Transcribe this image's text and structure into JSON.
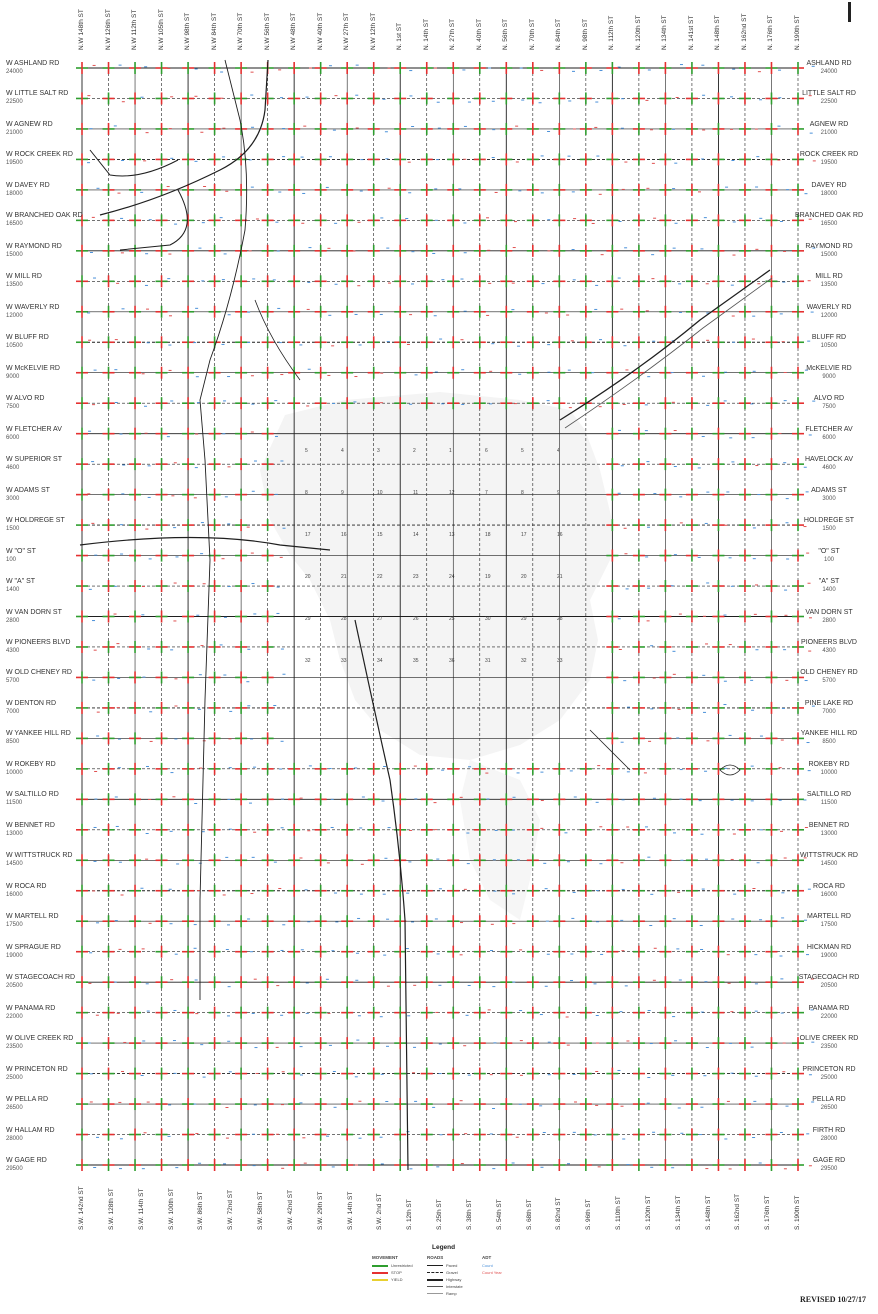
{
  "map": {
    "rows_left": [
      {
        "name": "W ASHLAND RD",
        "addr": "24000"
      },
      {
        "name": "W LITTLE SALT RD",
        "addr": "22500"
      },
      {
        "name": "W AGNEW RD",
        "addr": "21000"
      },
      {
        "name": "W ROCK CREEK RD",
        "addr": "19500"
      },
      {
        "name": "W DAVEY RD",
        "addr": "18000"
      },
      {
        "name": "W BRANCHED OAK RD",
        "addr": "16500"
      },
      {
        "name": "W RAYMOND RD",
        "addr": "15000"
      },
      {
        "name": "W MILL RD",
        "addr": "13500"
      },
      {
        "name": "W WAVERLY RD",
        "addr": "12000"
      },
      {
        "name": "W BLUFF RD",
        "addr": "10500"
      },
      {
        "name": "W McKELVIE RD",
        "addr": "9000"
      },
      {
        "name": "W ALVO RD",
        "addr": "7500"
      },
      {
        "name": "W FLETCHER AV",
        "addr": "6000"
      },
      {
        "name": "W SUPERIOR ST",
        "addr": "4600"
      },
      {
        "name": "W ADAMS ST",
        "addr": "3000"
      },
      {
        "name": "W HOLDREGE ST",
        "addr": "1500"
      },
      {
        "name": "W \"O\" ST",
        "addr": "100"
      },
      {
        "name": "W \"A\" ST",
        "addr": "1400"
      },
      {
        "name": "W VAN DORN ST",
        "addr": "2800"
      },
      {
        "name": "W PIONEERS BLVD",
        "addr": "4300"
      },
      {
        "name": "W OLD CHENEY RD",
        "addr": "5700"
      },
      {
        "name": "W DENTON RD",
        "addr": "7000"
      },
      {
        "name": "W YANKEE HILL RD",
        "addr": "8500"
      },
      {
        "name": "W ROKEBY RD",
        "addr": "10000"
      },
      {
        "name": "W SALTILLO RD",
        "addr": "11500"
      },
      {
        "name": "W BENNET RD",
        "addr": "13000"
      },
      {
        "name": "W WITTSTRUCK RD",
        "addr": "14500"
      },
      {
        "name": "W ROCA RD",
        "addr": "16000"
      },
      {
        "name": "W MARTELL RD",
        "addr": "17500"
      },
      {
        "name": "W SPRAGUE RD",
        "addr": "19000"
      },
      {
        "name": "W STAGECOACH RD",
        "addr": "20500"
      },
      {
        "name": "W PANAMA RD",
        "addr": "22000"
      },
      {
        "name": "W OLIVE CREEK RD",
        "addr": "23500"
      },
      {
        "name": "W PRINCETON RD",
        "addr": "25000"
      },
      {
        "name": "W PELLA RD",
        "addr": "26500"
      },
      {
        "name": "W HALLAM RD",
        "addr": "28000"
      },
      {
        "name": "W GAGE RD",
        "addr": "29500"
      }
    ],
    "rows_right": [
      {
        "name": "ASHLAND RD",
        "addr": "24000"
      },
      {
        "name": "LITTLE SALT RD",
        "addr": "22500"
      },
      {
        "name": "AGNEW RD",
        "addr": "21000"
      },
      {
        "name": "ROCK CREEK RD",
        "addr": "19500"
      },
      {
        "name": "DAVEY RD",
        "addr": "18000"
      },
      {
        "name": "BRANCHED OAK RD",
        "addr": "16500"
      },
      {
        "name": "RAYMOND RD",
        "addr": "15000"
      },
      {
        "name": "MILL RD",
        "addr": "13500"
      },
      {
        "name": "WAVERLY RD",
        "addr": "12000"
      },
      {
        "name": "BLUFF RD",
        "addr": "10500"
      },
      {
        "name": "McKELVIE RD",
        "addr": "9000"
      },
      {
        "name": "ALVO RD",
        "addr": "7500"
      },
      {
        "name": "FLETCHER AV",
        "addr": "6000"
      },
      {
        "name": "HAVELOCK AV",
        "addr": "4600"
      },
      {
        "name": "ADAMS ST",
        "addr": "3000"
      },
      {
        "name": "HOLDREGE ST",
        "addr": "1500"
      },
      {
        "name": "\"O\" ST",
        "addr": "100"
      },
      {
        "name": "\"A\" ST",
        "addr": "1400"
      },
      {
        "name": "VAN DORN ST",
        "addr": "2800"
      },
      {
        "name": "PIONEERS BLVD",
        "addr": "4300"
      },
      {
        "name": "OLD CHENEY RD",
        "addr": "5700"
      },
      {
        "name": "PINE LAKE RD",
        "addr": "7000"
      },
      {
        "name": "YANKEE HILL RD",
        "addr": "8500"
      },
      {
        "name": "ROKEBY RD",
        "addr": "10000"
      },
      {
        "name": "SALTILLO RD",
        "addr": "11500"
      },
      {
        "name": "BENNET RD",
        "addr": "13000"
      },
      {
        "name": "WITTSTRUCK RD",
        "addr": "14500"
      },
      {
        "name": "ROCA RD",
        "addr": "16000"
      },
      {
        "name": "MARTELL RD",
        "addr": "17500"
      },
      {
        "name": "HICKMAN RD",
        "addr": "19000"
      },
      {
        "name": "STAGECOACH RD",
        "addr": "20500"
      },
      {
        "name": "PANAMA RD",
        "addr": "22000"
      },
      {
        "name": "OLIVE CREEK RD",
        "addr": "23500"
      },
      {
        "name": "PRINCETON RD",
        "addr": "25000"
      },
      {
        "name": "PELLA RD",
        "addr": "26500"
      },
      {
        "name": "FIRTH RD",
        "addr": "28000"
      },
      {
        "name": "GAGE RD",
        "addr": "29500"
      }
    ],
    "cols_top": [
      "N.W 148th ST",
      "N.W 126th ST",
      "N.W 112th ST",
      "N.W 105th ST",
      "N.W 98th ST",
      "N.W 84th ST",
      "N.W 70th ST",
      "N.W 56th ST",
      "N.W 48th ST",
      "N.W 40th ST",
      "N.W 27th ST",
      "N.W 12th ST",
      "N. 1st ST",
      "N. 14th ST",
      "N. 27th ST",
      "N. 40th ST",
      "N. 56th ST",
      "N. 70th ST",
      "N. 84th ST",
      "N. 98th ST",
      "N. 112th ST",
      "N. 120th ST",
      "N. 134th ST",
      "N. 141st ST",
      "N. 148th ST",
      "N. 162nd ST",
      "N. 176th ST",
      "N. 190th ST"
    ],
    "cols_bottom": [
      "S.W. 142nd ST",
      "S.W. 128th ST",
      "S.W. 114th ST",
      "S.W. 100th ST",
      "S.W. 86th ST",
      "S.W. 72nd ST",
      "S.W. 58th ST",
      "S.W. 42nd ST",
      "S.W. 29th ST",
      "S.W. 14th ST",
      "S.W. 2nd ST",
      "S. 12th ST",
      "S. 25th ST",
      "S. 38th ST",
      "S. 54th ST",
      "S. 68th ST",
      "S. 82nd ST",
      "S. 96th ST",
      "S. 110th ST",
      "S. 120th ST",
      "S. 134th ST",
      "S. 148th ST",
      "S. 162nd ST",
      "S. 176th ST",
      "S. 190th ST"
    ],
    "grid_numbers": [
      [
        "5",
        "4",
        "3",
        "2",
        "1",
        "6",
        "5",
        "4"
      ],
      [
        "8",
        "9",
        "10",
        "11",
        "12",
        "7",
        "8",
        "9"
      ],
      [
        "17",
        "16",
        "15",
        "14",
        "13",
        "18",
        "17",
        "16"
      ],
      [
        "20",
        "21",
        "22",
        "23",
        "24",
        "19",
        "20",
        "21"
      ],
      [
        "29",
        "28",
        "27",
        "26",
        "25",
        "30",
        "29",
        "28"
      ],
      [
        "32",
        "33",
        "34",
        "35",
        "36",
        "31",
        "32",
        "33"
      ]
    ],
    "colors": {
      "background": "#ffffff",
      "road": "#1f1f1f",
      "movement_green": "#2f9e2f",
      "movement_red": "#e53030",
      "movement_yellow": "#e8d030",
      "adt_blue": "#4a90d9",
      "adt_red": "#e05050",
      "urban_area": "#f3f3f3"
    }
  },
  "legend": {
    "title": "Legend",
    "col_movement": "MOVEMENT",
    "col_roads": "ROADS",
    "col_adt": "ADT",
    "movement_items": [
      "Unrestricted",
      "STOP",
      "YIELD"
    ],
    "road_items": [
      "Paved",
      "Gravel",
      "Highway",
      "Interstate",
      "Ramp"
    ],
    "adt_items": [
      "Count",
      "Count Year"
    ]
  },
  "revised": "REVISED 10/27/17"
}
